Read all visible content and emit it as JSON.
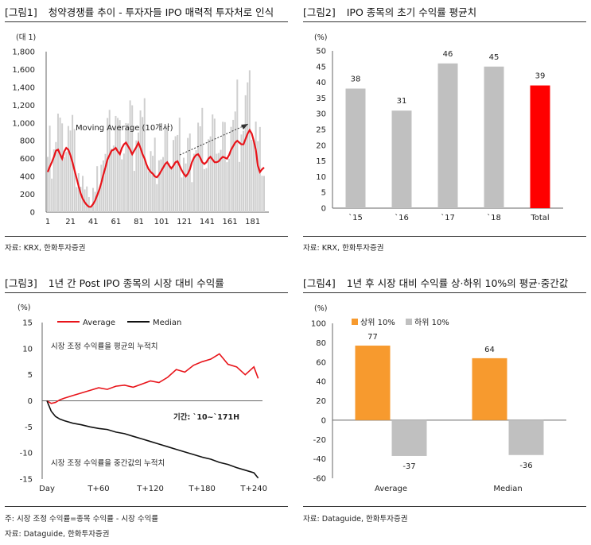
{
  "panels": [
    {
      "tag": "[그림1]",
      "title": "청약경쟁률 추이 - 투자자들 IPO 매력적 투자처로 인식",
      "source": "자료: KRX, 한화투자증권"
    },
    {
      "tag": "[그림2]",
      "title": "IPO 종목의 초기 수익률 평균치",
      "source": "자료: KRX, 한화투자증권"
    },
    {
      "tag": "[그림3]",
      "title": "1년 간 Post IPO 종목의 시장 대비 수익률",
      "note": "주: 시장 조정 수익률=종목 수익률 - 시장 수익률",
      "source": "자료: Dataguide, 한화투자증권"
    },
    {
      "tag": "[그림4]",
      "title": "1년 후 시장 대비 수익률 상·하위 10%의 평균·중간값",
      "source": "자료: Dataguide, 한화투자증권"
    }
  ],
  "chart_data": [
    {
      "type": "bar",
      "unit_label": "(대 1)",
      "x_ticks": [
        "1",
        "21",
        "41",
        "61",
        "81",
        "101",
        "121",
        "141",
        "161",
        "181"
      ],
      "ylim": [
        0,
        1800
      ],
      "y_ticks": [
        "0",
        "200",
        "400",
        "600",
        "800",
        "1,000",
        "1,200",
        "1,400",
        "1,600",
        "1,800"
      ],
      "bar_color": "#cfcfcf",
      "line_color": "#e8141a",
      "annotation": "Moving Average (10개사)",
      "series": [
        {
          "name": "Moving Average (10개사)",
          "values": [
            450,
            510,
            560,
            620,
            690,
            700,
            650,
            600,
            680,
            720,
            700,
            640,
            560,
            470,
            380,
            290,
            210,
            150,
            110,
            80,
            60,
            60,
            90,
            130,
            190,
            250,
            330,
            420,
            500,
            590,
            640,
            690,
            700,
            720,
            680,
            650,
            720,
            760,
            780,
            740,
            700,
            650,
            690,
            730,
            780,
            720,
            650,
            600,
            530,
            480,
            450,
            430,
            400,
            390,
            420,
            460,
            500,
            540,
            560,
            520,
            490,
            520,
            560,
            570,
            520,
            470,
            430,
            400,
            430,
            480,
            560,
            610,
            640,
            650,
            610,
            560,
            540,
            560,
            600,
            620,
            590,
            560,
            560,
            570,
            600,
            620,
            610,
            600,
            640,
            700,
            740,
            780,
            800,
            780,
            760,
            760,
            820,
            880,
            920,
            880,
            800,
            700,
            520,
            450,
            480,
            500
          ]
        }
      ],
      "bars_note": "청약경쟁률 (unlabelled grey bars)"
    },
    {
      "type": "bar",
      "unit_label": "(%)",
      "categories": [
        "`15",
        "`16",
        "`17",
        "`18",
        "Total"
      ],
      "values": [
        38,
        31,
        46,
        45,
        39
      ],
      "data_labels": [
        "38",
        "31",
        "46",
        "45",
        "39"
      ],
      "colors": [
        "#c0c0c0",
        "#c0c0c0",
        "#c0c0c0",
        "#c0c0c0",
        "#ff0000"
      ],
      "ylim": [
        0,
        50
      ],
      "y_ticks": [
        "0",
        "5",
        "10",
        "15",
        "20",
        "25",
        "30",
        "35",
        "40",
        "45",
        "50"
      ]
    },
    {
      "type": "line",
      "unit_label": "(%)",
      "x_ticks": [
        "Day",
        "T+60",
        "T+120",
        "T+180",
        "T+240"
      ],
      "ylim": [
        -15,
        15
      ],
      "y_ticks": [
        "-15",
        "-10",
        "-5",
        "0",
        "5",
        "10",
        "15"
      ],
      "annotations": [
        "시장 조정 수익률을 평균의 누적치",
        "시장 조정 수익률을 중간값의 누적치",
        "기간: `10~`171H"
      ],
      "series": [
        {
          "name": "Average",
          "color": "#e8141a",
          "x": [
            0,
            5,
            10,
            15,
            20,
            30,
            40,
            50,
            60,
            70,
            80,
            90,
            100,
            110,
            120,
            130,
            140,
            150,
            160,
            170,
            180,
            190,
            200,
            210,
            220,
            230,
            240,
            245
          ],
          "values": [
            0,
            -0.5,
            -0.3,
            0.2,
            0.5,
            1.0,
            1.5,
            2.0,
            2.5,
            2.2,
            2.8,
            3.0,
            2.6,
            3.2,
            3.8,
            3.5,
            4.5,
            6.0,
            5.5,
            6.8,
            7.5,
            8.0,
            9.0,
            7.0,
            6.5,
            5.0,
            6.5,
            4.3
          ]
        },
        {
          "name": "Median",
          "color": "#111111",
          "x": [
            0,
            5,
            10,
            15,
            20,
            30,
            40,
            50,
            60,
            70,
            80,
            90,
            100,
            110,
            120,
            130,
            140,
            150,
            160,
            170,
            180,
            190,
            200,
            210,
            220,
            230,
            240,
            245
          ],
          "values": [
            0,
            -2.0,
            -3.0,
            -3.5,
            -3.8,
            -4.3,
            -4.6,
            -5.0,
            -5.3,
            -5.5,
            -6.0,
            -6.3,
            -6.8,
            -7.3,
            -7.8,
            -8.3,
            -8.8,
            -9.3,
            -9.8,
            -10.3,
            -10.8,
            -11.2,
            -11.8,
            -12.2,
            -12.8,
            -13.3,
            -13.8,
            -14.8
          ]
        }
      ]
    },
    {
      "type": "bar",
      "unit_label": "(%)",
      "categories": [
        "Average",
        "Median"
      ],
      "ylim": [
        -60,
        100
      ],
      "y_ticks": [
        "-60",
        "-40",
        "-20",
        "0",
        "20",
        "40",
        "60",
        "80",
        "100"
      ],
      "series": [
        {
          "name": "상위 10%",
          "color": "#f79a2e",
          "values": [
            77,
            64
          ]
        },
        {
          "name": "하위 10%",
          "color": "#c0c0c0",
          "values": [
            -37,
            -36
          ]
        }
      ],
      "data_labels": [
        [
          "77",
          "64"
        ],
        [
          "-37",
          "-36"
        ]
      ]
    }
  ]
}
